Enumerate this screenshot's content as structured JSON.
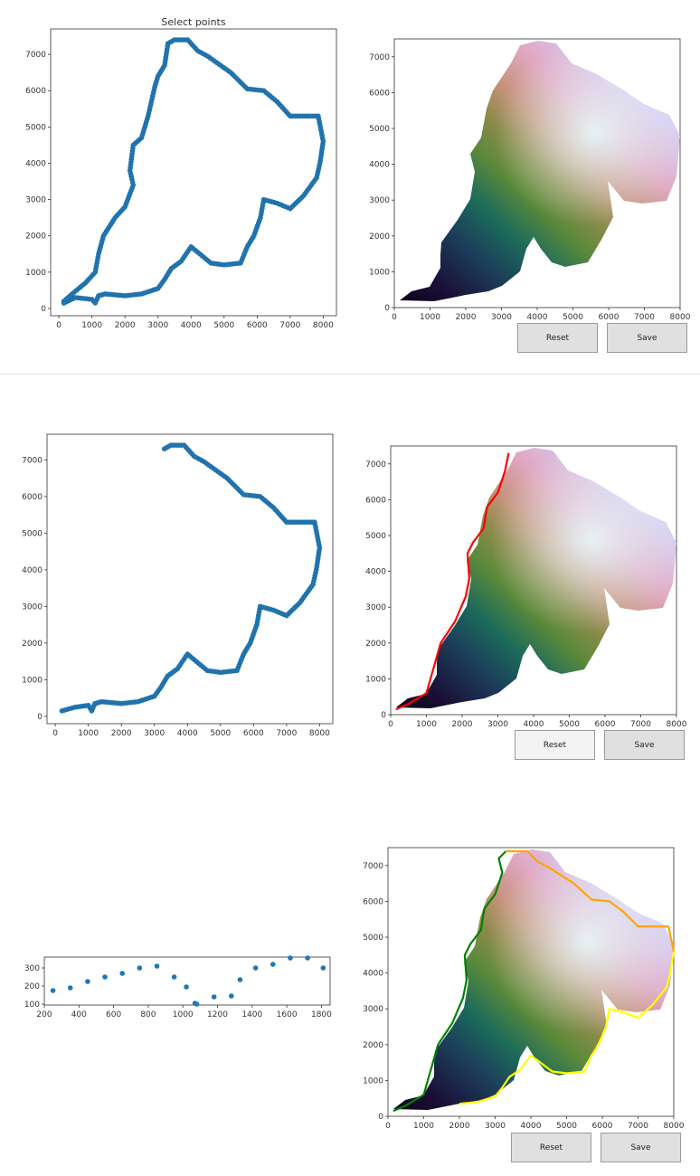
{
  "panels": [
    {
      "left_plot": {
        "title": "Select points",
        "x_ticks": [
          "0",
          "1000",
          "2000",
          "3000",
          "4000",
          "5000",
          "6000",
          "7000",
          "8000"
        ],
        "y_ticks": [
          "0",
          "1000",
          "2000",
          "3000",
          "4000",
          "5000",
          "6000",
          "7000"
        ]
      },
      "right_plot": {
        "x_ticks": [
          "0",
          "1000",
          "2000",
          "3000",
          "4000",
          "5000",
          "6000",
          "7000",
          "8000"
        ],
        "y_ticks": [
          "0",
          "1000",
          "2000",
          "3000",
          "4000",
          "5000",
          "6000",
          "7000"
        ]
      },
      "reset_label": "Reset",
      "save_label": "Save"
    },
    {
      "left_plot": {
        "title": "",
        "x_ticks": [
          "0",
          "1000",
          "2000",
          "3000",
          "4000",
          "5000",
          "6000",
          "7000",
          "8000"
        ],
        "y_ticks": [
          "0",
          "1000",
          "2000",
          "3000",
          "4000",
          "5000",
          "6000",
          "7000"
        ]
      },
      "right_plot": {
        "x_ticks": [
          "0",
          "1000",
          "2000",
          "3000",
          "4000",
          "5000",
          "6000",
          "7000",
          "8000"
        ],
        "y_ticks": [
          "0",
          "1000",
          "2000",
          "3000",
          "4000",
          "5000",
          "6000",
          "7000"
        ]
      },
      "reset_label": "Reset",
      "save_label": "Save"
    },
    {
      "left_plot": {
        "title": "",
        "x_ticks": [
          "200",
          "400",
          "600",
          "800",
          "1000",
          "1200",
          "1400",
          "1600",
          "1800"
        ],
        "y_ticks": [
          "100",
          "200",
          "300"
        ]
      },
      "right_plot": {
        "x_ticks": [
          "0",
          "1000",
          "2000",
          "3000",
          "4000",
          "5000",
          "6000",
          "7000",
          "8000"
        ],
        "y_ticks": [
          "0",
          "1000",
          "2000",
          "3000",
          "4000",
          "5000",
          "6000",
          "7000"
        ]
      },
      "reset_label": "Reset",
      "save_label": "Save"
    }
  ],
  "chart_data": [
    {
      "type": "line",
      "title": "Select points",
      "xlim": [
        -250,
        8400
      ],
      "ylim": [
        -200,
        7700
      ],
      "series": [
        {
          "color": "#1f77b4",
          "marker": "circle",
          "points": [
            [
              150,
              150
            ],
            [
              500,
              300
            ],
            [
              1000,
              250
            ],
            [
              1100,
              150
            ],
            [
              1200,
              350
            ],
            [
              1400,
              400
            ],
            [
              2000,
              350
            ],
            [
              2500,
              400
            ],
            [
              3000,
              550
            ],
            [
              3200,
              800
            ],
            [
              3400,
              1100
            ],
            [
              3700,
              1300
            ],
            [
              4000,
              1700
            ],
            [
              4200,
              1550
            ],
            [
              4600,
              1250
            ],
            [
              5000,
              1200
            ],
            [
              5500,
              1250
            ],
            [
              5700,
              1700
            ],
            [
              5900,
              2000
            ],
            [
              6100,
              2500
            ],
            [
              6200,
              3000
            ],
            [
              6600,
              2900
            ],
            [
              7000,
              2750
            ],
            [
              7400,
              3100
            ],
            [
              7800,
              3600
            ],
            [
              7900,
              4000
            ],
            [
              8000,
              4600
            ],
            [
              7850,
              5300
            ],
            [
              7300,
              5300
            ],
            [
              7000,
              5300
            ],
            [
              6600,
              5700
            ],
            [
              6200,
              6000
            ],
            [
              5700,
              6050
            ],
            [
              5200,
              6500
            ],
            [
              4500,
              6950
            ],
            [
              4200,
              7100
            ],
            [
              3900,
              7400
            ],
            [
              3500,
              7400
            ],
            [
              3300,
              7300
            ],
            [
              3200,
              6700
            ],
            [
              3000,
              6400
            ],
            [
              2900,
              6100
            ],
            [
              2700,
              5300
            ],
            [
              2500,
              4700
            ],
            [
              2250,
              4500
            ],
            [
              2150,
              3800
            ],
            [
              2250,
              3400
            ],
            [
              2000,
              2800
            ],
            [
              1700,
              2500
            ],
            [
              1350,
              2000
            ],
            [
              1200,
              1500
            ],
            [
              1100,
              1000
            ],
            [
              800,
              700
            ],
            [
              400,
              400
            ],
            [
              150,
              200
            ]
          ]
        }
      ]
    },
    {
      "type": "image",
      "xlim": [
        0,
        8000
      ],
      "ylim": [
        0,
        7500
      ],
      "series": []
    },
    {
      "type": "line",
      "xlim": [
        -250,
        8400
      ],
      "ylim": [
        -200,
        7700
      ],
      "series": [
        {
          "color": "#1f77b4",
          "marker": "circle",
          "points": [
            [
              200,
              150
            ],
            [
              600,
              250
            ],
            [
              1000,
              300
            ],
            [
              1100,
              150
            ],
            [
              1200,
              350
            ],
            [
              1400,
              400
            ],
            [
              2000,
              350
            ],
            [
              2500,
              400
            ],
            [
              3000,
              550
            ],
            [
              3200,
              800
            ],
            [
              3400,
              1100
            ],
            [
              3700,
              1300
            ],
            [
              4000,
              1700
            ],
            [
              4200,
              1550
            ],
            [
              4600,
              1250
            ],
            [
              5000,
              1200
            ],
            [
              5500,
              1250
            ],
            [
              5700,
              1700
            ],
            [
              5900,
              2000
            ],
            [
              6100,
              2500
            ],
            [
              6200,
              3000
            ],
            [
              6600,
              2900
            ],
            [
              7000,
              2750
            ],
            [
              7400,
              3100
            ],
            [
              7800,
              3600
            ],
            [
              7900,
              4000
            ],
            [
              8000,
              4600
            ],
            [
              7850,
              5300
            ],
            [
              7300,
              5300
            ],
            [
              7000,
              5300
            ],
            [
              6600,
              5700
            ],
            [
              6200,
              6000
            ],
            [
              5700,
              6050
            ],
            [
              5200,
              6500
            ],
            [
              4500,
              6950
            ],
            [
              4200,
              7100
            ],
            [
              3900,
              7400
            ],
            [
              3500,
              7400
            ],
            [
              3300,
              7300
            ]
          ]
        }
      ]
    },
    {
      "type": "image",
      "xlim": [
        0,
        8000
      ],
      "ylim": [
        0,
        7500
      ],
      "series": [
        {
          "color": "#ff0000",
          "points": [
            [
              150,
              150
            ],
            [
              500,
              300
            ],
            [
              1000,
              600
            ],
            [
              1200,
              1300
            ],
            [
              1400,
              2000
            ],
            [
              1800,
              2600
            ],
            [
              2100,
              3300
            ],
            [
              2200,
              3800
            ],
            [
              2150,
              4500
            ],
            [
              2300,
              4800
            ],
            [
              2600,
              5200
            ],
            [
              2700,
              5800
            ],
            [
              3000,
              6200
            ],
            [
              3200,
              6800
            ],
            [
              3300,
              7300
            ]
          ]
        }
      ]
    },
    {
      "type": "scatter",
      "xlim": [
        200,
        1850
      ],
      "ylim": [
        95,
        360
      ],
      "series": [
        {
          "color": "#1f77b4",
          "points": [
            [
              250,
              175
            ],
            [
              350,
              190
            ],
            [
              450,
              225
            ],
            [
              550,
              250
            ],
            [
              650,
              270
            ],
            [
              750,
              300
            ],
            [
              850,
              310
            ],
            [
              950,
              250
            ],
            [
              1020,
              195
            ],
            [
              1070,
              105
            ],
            [
              1080,
              100
            ],
            [
              1180,
              140
            ],
            [
              1280,
              145
            ],
            [
              1330,
              235
            ],
            [
              1420,
              300
            ],
            [
              1520,
              320
            ],
            [
              1620,
              355
            ],
            [
              1720,
              355
            ],
            [
              1810,
              300
            ]
          ]
        }
      ]
    },
    {
      "type": "image",
      "xlim": [
        0,
        8000
      ],
      "ylim": [
        0,
        7500
      ],
      "series": [
        {
          "color": "#008000",
          "points": [
            [
              150,
              150
            ],
            [
              500,
              300
            ],
            [
              1000,
              600
            ],
            [
              1200,
              1300
            ],
            [
              1400,
              2000
            ],
            [
              1800,
              2600
            ],
            [
              2100,
              3300
            ],
            [
              2200,
              3800
            ],
            [
              2150,
              4500
            ],
            [
              2300,
              4800
            ],
            [
              2600,
              5200
            ],
            [
              2700,
              5800
            ],
            [
              3000,
              6200
            ],
            [
              3100,
              6500
            ],
            [
              3200,
              6800
            ],
            [
              3100,
              7200
            ],
            [
              3300,
              7400
            ]
          ]
        },
        {
          "color": "#ffa500",
          "points": [
            [
              3300,
              7400
            ],
            [
              3900,
              7400
            ],
            [
              4200,
              7100
            ],
            [
              4500,
              6950
            ],
            [
              5200,
              6500
            ],
            [
              5700,
              6050
            ],
            [
              6200,
              6000
            ],
            [
              6600,
              5700
            ],
            [
              7000,
              5300
            ],
            [
              7300,
              5300
            ],
            [
              7850,
              5300
            ],
            [
              8000,
              4600
            ]
          ]
        },
        {
          "color": "#ffff00",
          "points": [
            [
              8000,
              4600
            ],
            [
              7900,
              4000
            ],
            [
              7800,
              3600
            ],
            [
              7400,
              3100
            ],
            [
              7000,
              2750
            ],
            [
              6600,
              2900
            ],
            [
              6200,
              3000
            ],
            [
              6100,
              2500
            ],
            [
              5900,
              2000
            ],
            [
              5700,
              1700
            ],
            [
              5500,
              1250
            ],
            [
              5000,
              1200
            ],
            [
              4600,
              1250
            ],
            [
              4200,
              1550
            ],
            [
              4000,
              1700
            ],
            [
              3700,
              1300
            ],
            [
              3400,
              1100
            ],
            [
              3200,
              800
            ],
            [
              3000,
              550
            ],
            [
              2500,
              400
            ],
            [
              2000,
              350
            ]
          ]
        }
      ]
    }
  ]
}
